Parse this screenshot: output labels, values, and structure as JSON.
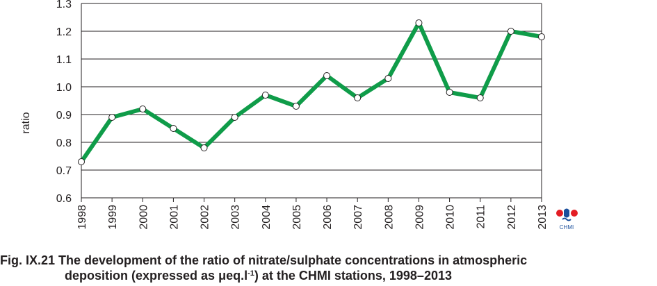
{
  "chart_data": {
    "type": "line",
    "title": "",
    "xlabel": "",
    "ylabel": "ratio",
    "x": [
      "1998",
      "1999",
      "2000",
      "2001",
      "2002",
      "2003",
      "2004",
      "2005",
      "2006",
      "2007",
      "2008",
      "2009",
      "2010",
      "2011",
      "2012",
      "2013"
    ],
    "series": [
      {
        "values": [
          0.73,
          0.89,
          0.92,
          0.85,
          0.78,
          0.89,
          0.97,
          0.93,
          1.04,
          0.96,
          1.03,
          1.23,
          0.98,
          0.96,
          1.2,
          1.18
        ]
      }
    ],
    "ylim": [
      0.6,
      1.3
    ],
    "yticks": [
      "0.6",
      "0.7",
      "0.8",
      "0.9",
      "1.0",
      "1.1",
      "1.2",
      "1.3"
    ],
    "grid": "horizontal",
    "line_color": "#0f9c49",
    "marker_fill": "#ffffff"
  },
  "logo": {
    "text": "CHMI",
    "red": "#e31d24",
    "blue": "#1b4f9c"
  },
  "caption": {
    "line1": "Fig. IX.21  The development of the ratio of nitrate/sulphate concentrations in atmospheric",
    "line2_before": "deposition (expressed as μeq.l",
    "line2_sup": "-1",
    "line2_after": ") at the CHMI stations, 1998–2013"
  }
}
